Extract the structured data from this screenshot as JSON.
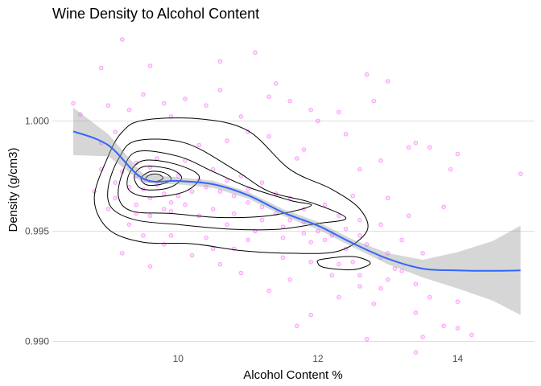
{
  "chart_data": {
    "type": "scatter",
    "title": "Wine Density to Alcohol Content",
    "xlabel": "Alcohol Content %",
    "ylabel": "Density (g/cm3)",
    "xlim": [
      8.2,
      15.1
    ],
    "ylim": [
      0.9898,
      1.0041
    ],
    "x_ticks": [
      {
        "value": 10,
        "label": "10"
      },
      {
        "value": 12,
        "label": "12"
      },
      {
        "value": 14,
        "label": "14"
      }
    ],
    "y_ticks": [
      {
        "value": 0.99,
        "label": "0.990"
      },
      {
        "value": 0.995,
        "label": "0.995"
      },
      {
        "value": 1.0,
        "label": "1.000"
      }
    ],
    "grid": true,
    "point_color": "#ff00ff",
    "smooth_color": "#3366ff",
    "ribbon_color": "#999999",
    "contour_color": "#000000",
    "points": [
      [
        9.2,
        1.0037
      ],
      [
        9.6,
        1.0025
      ],
      [
        8.9,
        1.0024
      ],
      [
        11.1,
        1.0031
      ],
      [
        10.6,
        1.0027
      ],
      [
        9.5,
        1.0012
      ],
      [
        10.1,
        1.001
      ],
      [
        9.8,
        1.0008
      ],
      [
        11.4,
        1.0017
      ],
      [
        12.7,
        1.0021
      ],
      [
        10.4,
        1.0007
      ],
      [
        9.3,
        1.0005
      ],
      [
        8.5,
        1.0008
      ],
      [
        12.3,
        1.0004
      ],
      [
        11.6,
        1.0009
      ],
      [
        13.0,
        1.0018
      ],
      [
        10.9,
        1.0002
      ],
      [
        9.9,
        1.0002
      ],
      [
        12.0,
        1.0
      ],
      [
        11.0,
        0.9995
      ],
      [
        13.3,
        0.9988
      ],
      [
        13.6,
        0.9988
      ],
      [
        12.9,
        0.9982
      ],
      [
        14.9,
        0.9976
      ],
      [
        13.9,
        0.9978
      ],
      [
        12.6,
        0.9978
      ],
      [
        11.7,
        0.9983
      ],
      [
        9.6,
        0.9979
      ],
      [
        9.2,
        0.9977
      ],
      [
        9.4,
        0.9975
      ],
      [
        9.5,
        0.9973
      ],
      [
        9.7,
        0.9971
      ],
      [
        9.3,
        0.997
      ],
      [
        9.1,
        0.9972
      ],
      [
        9.5,
        0.9969
      ],
      [
        9.8,
        0.9967
      ],
      [
        9.6,
        0.9965
      ],
      [
        9.9,
        0.9963
      ],
      [
        9.4,
        0.9962
      ],
      [
        10.0,
        0.9966
      ],
      [
        10.2,
        0.9968
      ],
      [
        10.4,
        0.997
      ],
      [
        10.6,
        0.9968
      ],
      [
        10.8,
        0.9966
      ],
      [
        11.0,
        0.9963
      ],
      [
        11.2,
        0.9961
      ],
      [
        11.4,
        0.9958
      ],
      [
        11.6,
        0.9955
      ],
      [
        11.8,
        0.9954
      ],
      [
        12.0,
        0.995
      ],
      [
        12.2,
        0.9948
      ],
      [
        12.4,
        0.9942
      ],
      [
        12.5,
        0.9936
      ],
      [
        12.3,
        0.9935
      ],
      [
        12.6,
        0.993
      ],
      [
        12.9,
        0.9938
      ],
      [
        13.1,
        0.9933
      ],
      [
        13.4,
        0.9926
      ],
      [
        13.6,
        0.992
      ],
      [
        14.0,
        0.9918
      ],
      [
        13.2,
        0.9932
      ],
      [
        12.8,
        0.9917
      ],
      [
        12.9,
        0.9924
      ],
      [
        13.5,
        0.9902
      ],
      [
        13.4,
        0.9913
      ],
      [
        12.7,
        0.9901
      ],
      [
        11.9,
        0.9912
      ],
      [
        11.7,
        0.9907
      ],
      [
        12.3,
        0.992
      ],
      [
        11.3,
        0.9923
      ],
      [
        10.9,
        0.9931
      ],
      [
        10.6,
        0.9935
      ],
      [
        10.2,
        0.9939
      ],
      [
        9.6,
        0.9934
      ],
      [
        9.2,
        0.994
      ],
      [
        9.9,
        0.9948
      ],
      [
        10.4,
        0.9947
      ],
      [
        10.8,
        0.9942
      ],
      [
        11.5,
        0.9938
      ],
      [
        11.9,
        0.9936
      ],
      [
        9.3,
        0.9953
      ],
      [
        9.6,
        0.9957
      ],
      [
        9.9,
        0.9959
      ],
      [
        10.3,
        0.9957
      ],
      [
        10.7,
        0.9953
      ],
      [
        11.1,
        0.995
      ],
      [
        11.5,
        0.9947
      ],
      [
        11.9,
        0.9945
      ],
      [
        12.6,
        0.9948
      ],
      [
        12.9,
        0.9953
      ],
      [
        13.3,
        0.9957
      ],
      [
        13.8,
        0.9961
      ],
      [
        13.0,
        0.9965
      ],
      [
        12.5,
        0.9966
      ],
      [
        12.1,
        0.9962
      ],
      [
        11.6,
        0.9965
      ],
      [
        11.2,
        0.9972
      ],
      [
        10.9,
        0.9975
      ],
      [
        10.5,
        0.9978
      ],
      [
        10.1,
        0.9982
      ],
      [
        10.3,
        0.9989
      ],
      [
        10.7,
        0.9991
      ],
      [
        11.3,
        0.9993
      ],
      [
        11.8,
        0.9987
      ],
      [
        12.4,
        0.9994
      ],
      [
        8.9,
        0.999
      ],
      [
        9.1,
        0.9995
      ],
      [
        8.6,
        1.0003
      ],
      [
        9.0,
        1.0007
      ],
      [
        10.6,
        1.0014
      ],
      [
        11.3,
        1.0011
      ],
      [
        11.9,
        1.0005
      ],
      [
        12.8,
        1.0009
      ],
      [
        13.4,
        0.999
      ],
      [
        14.0,
        0.9985
      ],
      [
        9.4,
        0.9981
      ],
      [
        9.7,
        0.9983
      ],
      [
        9.1,
        0.9965
      ],
      [
        9.4,
        0.9958
      ],
      [
        9.8,
        0.996
      ],
      [
        10.1,
        0.9962
      ],
      [
        10.5,
        0.996
      ],
      [
        10.8,
        0.9958
      ],
      [
        11.2,
        0.9955
      ],
      [
        11.5,
        0.9952
      ],
      [
        11.8,
        0.9949
      ],
      [
        12.1,
        0.9946
      ],
      [
        12.4,
        0.9951
      ],
      [
        12.7,
        0.9944
      ],
      [
        13.0,
        0.994
      ],
      [
        9.0,
        0.996
      ],
      [
        8.8,
        0.9968
      ],
      [
        8.9,
        0.9978
      ],
      [
        9.5,
        0.9948
      ],
      [
        9.8,
        0.9944
      ],
      [
        10.5,
        0.9942
      ],
      [
        11.0,
        0.9946
      ],
      [
        12.2,
        0.993
      ],
      [
        12.6,
        0.9925
      ],
      [
        13.8,
        0.9907
      ],
      [
        14.2,
        0.9903
      ],
      [
        13.4,
        0.9895
      ],
      [
        14.0,
        0.9906
      ],
      [
        11.6,
        0.9928
      ],
      [
        10.0,
        0.9975
      ],
      [
        10.3,
        0.9973
      ],
      [
        10.7,
        0.9973
      ],
      [
        11.0,
        0.9969
      ],
      [
        11.4,
        0.9967
      ],
      [
        11.8,
        0.996
      ],
      [
        12.3,
        0.9957
      ],
      [
        12.6,
        0.9955
      ],
      [
        13.2,
        0.9946
      ],
      [
        13.5,
        0.994
      ],
      [
        13.0,
        0.9928
      ]
    ],
    "smooth": {
      "x": [
        8.5,
        9.0,
        9.5,
        10.0,
        10.5,
        11.0,
        11.5,
        12.0,
        12.5,
        13.0,
        13.5,
        14.0,
        14.5,
        14.9
      ],
      "y": [
        0.99953,
        0.9989,
        0.99738,
        0.99728,
        0.99713,
        0.99663,
        0.99585,
        0.99525,
        0.99445,
        0.99375,
        0.9933,
        0.99322,
        0.9932,
        0.99322
      ],
      "lower": [
        0.99845,
        0.9984,
        0.99718,
        0.99712,
        0.99697,
        0.99648,
        0.9957,
        0.99508,
        0.99428,
        0.9935,
        0.9929,
        0.9924,
        0.99185,
        0.9912
      ],
      "upper": [
        1.0006,
        0.9994,
        0.99758,
        0.99744,
        0.99729,
        0.99678,
        0.996,
        0.99542,
        0.99462,
        0.994,
        0.9937,
        0.99405,
        0.99455,
        0.99525
      ]
    },
    "density_contours": [
      {
        "level": 1,
        "points": [
          [
            9.5,
            1.00003
          ],
          [
            10.3,
            1.0001
          ],
          [
            11.0,
            0.99955
          ],
          [
            11.6,
            0.9978
          ],
          [
            12.2,
            0.9969
          ],
          [
            12.6,
            0.996
          ],
          [
            12.7,
            0.995
          ],
          [
            12.3,
            0.9941
          ],
          [
            11.6,
            0.994
          ],
          [
            10.9,
            0.99412
          ],
          [
            10.2,
            0.99443
          ],
          [
            9.5,
            0.9945
          ],
          [
            9.0,
            0.9951
          ],
          [
            8.8,
            0.9965
          ],
          [
            9.0,
            0.9984
          ],
          [
            9.2,
            0.9995
          ]
        ]
      },
      {
        "level": 2,
        "points": [
          [
            9.4,
            0.9991
          ],
          [
            10.1,
            0.999
          ],
          [
            10.8,
            0.9978
          ],
          [
            11.3,
            0.9968
          ],
          [
            11.9,
            0.9963
          ],
          [
            12.4,
            0.9956
          ],
          [
            12.0,
            0.99535
          ],
          [
            11.4,
            0.99508
          ],
          [
            10.7,
            0.9951
          ],
          [
            10.0,
            0.9953
          ],
          [
            9.4,
            0.9955
          ],
          [
            9.05,
            0.99605
          ],
          [
            9.0,
            0.997
          ],
          [
            9.15,
            0.9983
          ]
        ]
      },
      {
        "level": 3,
        "points": [
          [
            9.4,
            0.9986
          ],
          [
            10.0,
            0.9984
          ],
          [
            10.5,
            0.9977
          ],
          [
            11.0,
            0.997
          ],
          [
            11.6,
            0.9964
          ],
          [
            11.9,
            0.99615
          ],
          [
            11.3,
            0.9957
          ],
          [
            10.6,
            0.99562
          ],
          [
            9.9,
            0.9958
          ],
          [
            9.35,
            0.9959
          ],
          [
            9.15,
            0.9965
          ],
          [
            9.2,
            0.9976
          ]
        ]
      },
      {
        "level": 4,
        "points": [
          [
            9.5,
            0.9982
          ],
          [
            9.95,
            0.99805
          ],
          [
            10.3,
            0.9975
          ],
          [
            10.1,
            0.9968
          ],
          [
            9.6,
            0.99655
          ],
          [
            9.3,
            0.99685
          ],
          [
            9.3,
            0.9976
          ]
        ]
      },
      {
        "level": 5,
        "points": [
          [
            9.55,
            0.99795
          ],
          [
            9.9,
            0.9978
          ],
          [
            10.05,
            0.9974
          ],
          [
            9.85,
            0.99695
          ],
          [
            9.5,
            0.9969
          ],
          [
            9.38,
            0.9973
          ],
          [
            9.4,
            0.9977
          ]
        ]
      },
      {
        "level": 6,
        "points": [
          [
            9.6,
            0.9977
          ],
          [
            9.8,
            0.99765
          ],
          [
            9.9,
            0.99735
          ],
          [
            9.75,
            0.99712
          ],
          [
            9.55,
            0.9971
          ],
          [
            9.47,
            0.9974
          ]
        ]
      },
      {
        "level": 7,
        "points": [
          [
            9.62,
            0.99758
          ],
          [
            9.74,
            0.99755
          ],
          [
            9.78,
            0.99738
          ],
          [
            9.68,
            0.99725
          ],
          [
            9.57,
            0.99727
          ],
          [
            9.54,
            0.99742
          ]
        ]
      },
      {
        "level": 8,
        "points": [
          [
            12.05,
            0.99372
          ],
          [
            12.5,
            0.99385
          ],
          [
            12.75,
            0.99355
          ],
          [
            12.5,
            0.99325
          ],
          [
            12.1,
            0.99335
          ],
          [
            12.0,
            0.99355
          ]
        ]
      }
    ]
  }
}
